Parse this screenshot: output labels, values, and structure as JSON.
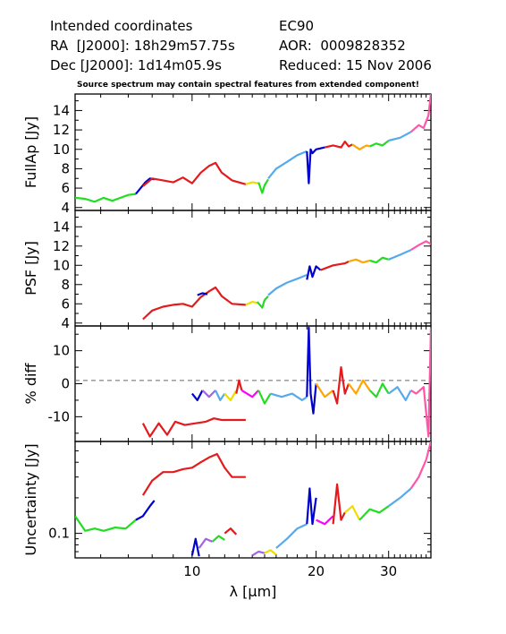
{
  "header": {
    "left_line1": "Intended coordinates",
    "left_line2": "RA  [J2000]: 18h29m57.75s",
    "left_line3": "Dec [J2000]: 1d14m05.9s",
    "right_line1": "EC90",
    "right_line2": "AOR:  0009828352",
    "right_line3": "Reduced: 15 Nov 2006",
    "warning": "Source spectrum may contain spectral features from extended component!"
  },
  "colors": {
    "red": "#e41a1c",
    "blue": "#0000cc",
    "violet": "#a064e6",
    "magenta": "#ff00ff",
    "pink": "#ff55aa",
    "lightblue": "#55aaee",
    "green": "#22dd22",
    "yellow": "#eedd00",
    "orange": "#ffa500",
    "gray": "#666666"
  },
  "chart_data": [
    {
      "type": "line",
      "ylabel": "FullAp [Jy]",
      "xscale": "log",
      "xlim": [
        5.2,
        38
      ],
      "ylim": [
        3.7,
        15.7
      ],
      "yticks": [
        4,
        6,
        8,
        10,
        12,
        14
      ],
      "series": [
        {
          "color": "green",
          "x": [
            5.2,
            5.5,
            5.8,
            6.1,
            6.4,
            6.7,
            7.0,
            7.3
          ],
          "y": [
            5.0,
            4.9,
            4.6,
            5.0,
            4.7,
            5.0,
            5.3,
            5.4
          ]
        },
        {
          "color": "blue",
          "x": [
            7.3,
            7.5,
            7.7,
            7.9,
            8.1
          ],
          "y": [
            5.4,
            6.0,
            6.6,
            7.0,
            6.9
          ]
        },
        {
          "color": "red",
          "x": [
            7.6,
            8.0,
            8.5,
            9.0,
            9.5,
            10.0,
            10.5,
            11.0,
            11.4,
            11.8,
            12.5,
            13.5
          ],
          "y": [
            6.2,
            7.0,
            6.8,
            6.6,
            7.1,
            6.5,
            7.6,
            8.3,
            8.6,
            7.6,
            6.8,
            6.4
          ]
        },
        {
          "color": "yellow",
          "x": [
            13.5,
            14.0,
            14.5
          ],
          "y": [
            6.4,
            6.6,
            6.5
          ]
        },
        {
          "color": "green",
          "x": [
            14.5,
            14.8,
            15.0,
            15.3
          ],
          "y": [
            6.6,
            5.5,
            6.3,
            6.9
          ]
        },
        {
          "color": "lightblue",
          "x": [
            15.3,
            16.0,
            17.0,
            18.0,
            19.0
          ],
          "y": [
            7.0,
            8.0,
            8.7,
            9.4,
            9.8
          ]
        },
        {
          "color": "blue",
          "x": [
            19.0,
            19.2,
            19.4,
            19.6,
            20.0,
            21.0
          ],
          "y": [
            9.8,
            6.5,
            10.0,
            9.6,
            10.0,
            10.2
          ]
        },
        {
          "color": "red",
          "x": [
            21.0,
            22.0,
            23.0,
            23.5,
            24.0,
            24.5
          ],
          "y": [
            10.2,
            10.4,
            10.2,
            10.8,
            10.3,
            10.5
          ]
        },
        {
          "color": "orange",
          "x": [
            24.5,
            25.5,
            26.5,
            27.0
          ],
          "y": [
            10.5,
            10.0,
            10.4,
            10.3
          ]
        },
        {
          "color": "green",
          "x": [
            27.0,
            28.0,
            29.0,
            30.0
          ],
          "y": [
            10.3,
            10.6,
            10.4,
            10.9
          ]
        },
        {
          "color": "lightblue",
          "x": [
            30.0,
            32.0,
            34.0
          ],
          "y": [
            10.9,
            11.2,
            11.8
          ]
        },
        {
          "color": "pink",
          "x": [
            34.0,
            35.5,
            36.5,
            37.5,
            38.0
          ],
          "y": [
            11.8,
            12.5,
            12.2,
            13.5,
            15.7
          ]
        }
      ]
    },
    {
      "type": "line",
      "ylabel": "PSF [Jy]",
      "xscale": "log",
      "xlim": [
        5.2,
        38
      ],
      "ylim": [
        3.7,
        15.7
      ],
      "yticks": [
        4,
        6,
        8,
        10,
        12,
        14
      ],
      "series": [
        {
          "color": "red",
          "x": [
            7.6,
            8.0,
            8.5,
            9.0,
            9.5,
            10.0,
            10.5,
            11.0,
            11.4,
            11.8,
            12.5,
            13.5
          ],
          "y": [
            4.4,
            5.3,
            5.7,
            5.9,
            6.0,
            5.7,
            6.7,
            7.3,
            7.7,
            6.8,
            6.0,
            5.9
          ]
        },
        {
          "color": "blue",
          "x": [
            10.3,
            10.6,
            10.9
          ],
          "y": [
            6.9,
            7.1,
            7.0
          ]
        },
        {
          "color": "yellow",
          "x": [
            13.5,
            14.0,
            14.4
          ],
          "y": [
            5.9,
            6.2,
            6.1
          ]
        },
        {
          "color": "green",
          "x": [
            14.4,
            14.8,
            15.0,
            15.3
          ],
          "y": [
            6.2,
            5.6,
            6.4,
            6.8
          ]
        },
        {
          "color": "lightblue",
          "x": [
            15.3,
            16.0,
            17.0,
            18.0,
            19.0
          ],
          "y": [
            6.9,
            7.6,
            8.2,
            8.6,
            9.0
          ]
        },
        {
          "color": "blue",
          "x": [
            19.0,
            19.3,
            19.6,
            20.0,
            20.5
          ],
          "y": [
            8.5,
            9.9,
            8.8,
            9.9,
            9.5
          ]
        },
        {
          "color": "red",
          "x": [
            20.5,
            22.0,
            23.5,
            24.0
          ],
          "y": [
            9.5,
            10.0,
            10.2,
            10.4
          ]
        },
        {
          "color": "orange",
          "x": [
            24.0,
            25.0,
            26.0,
            27.0
          ],
          "y": [
            10.4,
            10.6,
            10.3,
            10.5
          ]
        },
        {
          "color": "green",
          "x": [
            27.0,
            28.0,
            29.0,
            30.0
          ],
          "y": [
            10.5,
            10.3,
            10.8,
            10.6
          ]
        },
        {
          "color": "lightblue",
          "x": [
            30.0,
            32.0,
            34.0
          ],
          "y": [
            10.6,
            11.1,
            11.6
          ]
        },
        {
          "color": "pink",
          "x": [
            34.0,
            35.5,
            37.0,
            38.0
          ],
          "y": [
            11.6,
            12.1,
            12.5,
            12.2
          ]
        }
      ]
    },
    {
      "type": "line",
      "ylabel": "% diff",
      "xscale": "log",
      "xlim": [
        5.2,
        38
      ],
      "ylim": [
        -17.5,
        17.5
      ],
      "yticks": [
        -10,
        0,
        10
      ],
      "reference_line": 1,
      "series": [
        {
          "color": "red",
          "x": [
            7.6,
            7.9,
            8.3,
            8.7,
            9.1,
            9.6,
            10.2,
            10.8,
            11.3,
            11.8,
            12.5,
            13.5
          ],
          "y": [
            -12,
            -16,
            -12,
            -15.5,
            -11.5,
            -12.5,
            -12,
            -11.5,
            -10.5,
            -11,
            -11,
            -11
          ]
        },
        {
          "color": "blue",
          "x": [
            10.0,
            10.3,
            10.6
          ],
          "y": [
            -3,
            -5,
            -2
          ]
        },
        {
          "color": "violet",
          "x": [
            10.6,
            11.0,
            11.4
          ],
          "y": [
            -2,
            -4,
            -2
          ]
        },
        {
          "color": "lightblue",
          "x": [
            11.4,
            11.7,
            12.0
          ],
          "y": [
            -2,
            -5,
            -3
          ]
        },
        {
          "color": "yellow",
          "x": [
            12.0,
            12.4,
            12.8
          ],
          "y": [
            -3,
            -5,
            -2
          ]
        },
        {
          "color": "red",
          "x": [
            12.8,
            13.0,
            13.2
          ],
          "y": [
            -3,
            1,
            -2
          ]
        },
        {
          "color": "magenta",
          "x": [
            13.2,
            14.0,
            14.5
          ],
          "y": [
            -2,
            -4,
            -2
          ]
        },
        {
          "color": "green",
          "x": [
            14.5,
            15.0,
            15.5
          ],
          "y": [
            -2,
            -6,
            -3
          ]
        },
        {
          "color": "lightblue",
          "x": [
            15.5,
            16.5,
            17.5,
            18.5,
            19.0
          ],
          "y": [
            -3,
            -4,
            -3,
            -5,
            -4
          ]
        },
        {
          "color": "blue",
          "x": [
            19.0,
            19.2,
            19.4,
            19.7,
            20.0
          ],
          "y": [
            -4,
            17,
            -3,
            -9,
            0
          ]
        },
        {
          "color": "orange",
          "x": [
            20.0,
            21.0,
            22.0
          ],
          "y": [
            0,
            -4,
            -2
          ]
        },
        {
          "color": "red",
          "x": [
            22.0,
            22.5,
            23.0,
            23.5,
            24.0
          ],
          "y": [
            -2,
            -6,
            5,
            -3,
            0
          ]
        },
        {
          "color": "orange",
          "x": [
            24.0,
            25.0,
            26.0,
            27.0
          ],
          "y": [
            0,
            -3,
            1,
            -2
          ]
        },
        {
          "color": "green",
          "x": [
            27.0,
            28.0,
            29.0,
            30.0
          ],
          "y": [
            -2,
            -4,
            0,
            -3
          ]
        },
        {
          "color": "lightblue",
          "x": [
            30.0,
            31.5,
            33.0,
            34.0
          ],
          "y": [
            -3,
            -1,
            -5,
            -2
          ]
        },
        {
          "color": "pink",
          "x": [
            34.0,
            35.0,
            36.5,
            37.5,
            38.0
          ],
          "y": [
            -2,
            -3,
            -1,
            -16,
            17
          ]
        }
      ]
    },
    {
      "type": "line",
      "ylabel": "Uncertainty [Jy]",
      "xscale": "log",
      "yscale": "log",
      "xlim": [
        5.2,
        38
      ],
      "ylim": [
        0.062,
        0.6
      ],
      "yticks": [
        0.1
      ],
      "series": [
        {
          "color": "green",
          "x": [
            5.2,
            5.5,
            5.8,
            6.1,
            6.5,
            6.9,
            7.3
          ],
          "y": [
            0.14,
            0.105,
            0.11,
            0.105,
            0.112,
            0.11,
            0.13
          ]
        },
        {
          "color": "blue",
          "x": [
            7.3,
            7.6,
            7.9,
            8.1
          ],
          "y": [
            0.13,
            0.14,
            0.17,
            0.19
          ]
        },
        {
          "color": "red",
          "x": [
            7.6,
            8.0,
            8.5,
            9.0,
            9.5,
            10.0,
            10.5,
            11.0,
            11.5,
            12.0,
            12.5,
            13.5
          ],
          "y": [
            0.21,
            0.28,
            0.33,
            0.33,
            0.35,
            0.36,
            0.4,
            0.44,
            0.47,
            0.36,
            0.3,
            0.3
          ]
        },
        {
          "color": "blue",
          "x": [
            10.0,
            10.2,
            10.4
          ],
          "y": [
            0.065,
            0.09,
            0.064
          ]
        },
        {
          "color": "violet",
          "x": [
            10.4,
            10.8,
            11.2
          ],
          "y": [
            0.075,
            0.09,
            0.085
          ]
        },
        {
          "color": "green",
          "x": [
            11.2,
            11.6,
            12.0
          ],
          "y": [
            0.085,
            0.095,
            0.088
          ]
        },
        {
          "color": "red",
          "x": [
            12.0,
            12.4,
            12.8
          ],
          "y": [
            0.1,
            0.11,
            0.098
          ]
        },
        {
          "color": "violet",
          "x": [
            14.0,
            14.5,
            15.0
          ],
          "y": [
            0.065,
            0.07,
            0.068
          ]
        },
        {
          "color": "yellow",
          "x": [
            15.0,
            15.5,
            16.0
          ],
          "y": [
            0.068,
            0.072,
            0.066
          ]
        },
        {
          "color": "lightblue",
          "x": [
            16.0,
            17.0,
            18.0,
            19.0
          ],
          "y": [
            0.075,
            0.09,
            0.11,
            0.12
          ]
        },
        {
          "color": "blue",
          "x": [
            19.0,
            19.3,
            19.6,
            20.0
          ],
          "y": [
            0.12,
            0.24,
            0.12,
            0.2
          ]
        },
        {
          "color": "magenta",
          "x": [
            20.0,
            21.0,
            22.0
          ],
          "y": [
            0.13,
            0.12,
            0.14
          ]
        },
        {
          "color": "red",
          "x": [
            22.0,
            22.5,
            23.0,
            23.5
          ],
          "y": [
            0.12,
            0.26,
            0.13,
            0.15
          ]
        },
        {
          "color": "yellow",
          "x": [
            23.5,
            24.5,
            25.5
          ],
          "y": [
            0.15,
            0.17,
            0.13
          ]
        },
        {
          "color": "green",
          "x": [
            25.5,
            27.0,
            28.5,
            30.0
          ],
          "y": [
            0.13,
            0.16,
            0.15,
            0.17
          ]
        },
        {
          "color": "lightblue",
          "x": [
            30.0,
            32.0,
            34.0
          ],
          "y": [
            0.17,
            0.2,
            0.24
          ]
        },
        {
          "color": "pink",
          "x": [
            34.0,
            35.5,
            37.0,
            38.0
          ],
          "y": [
            0.24,
            0.3,
            0.42,
            0.6
          ]
        }
      ]
    }
  ],
  "x_axis": {
    "label": "λ [μm]",
    "tick_labels": [
      "10",
      "20",
      "30"
    ],
    "tick_values": [
      10,
      20,
      30
    ]
  }
}
